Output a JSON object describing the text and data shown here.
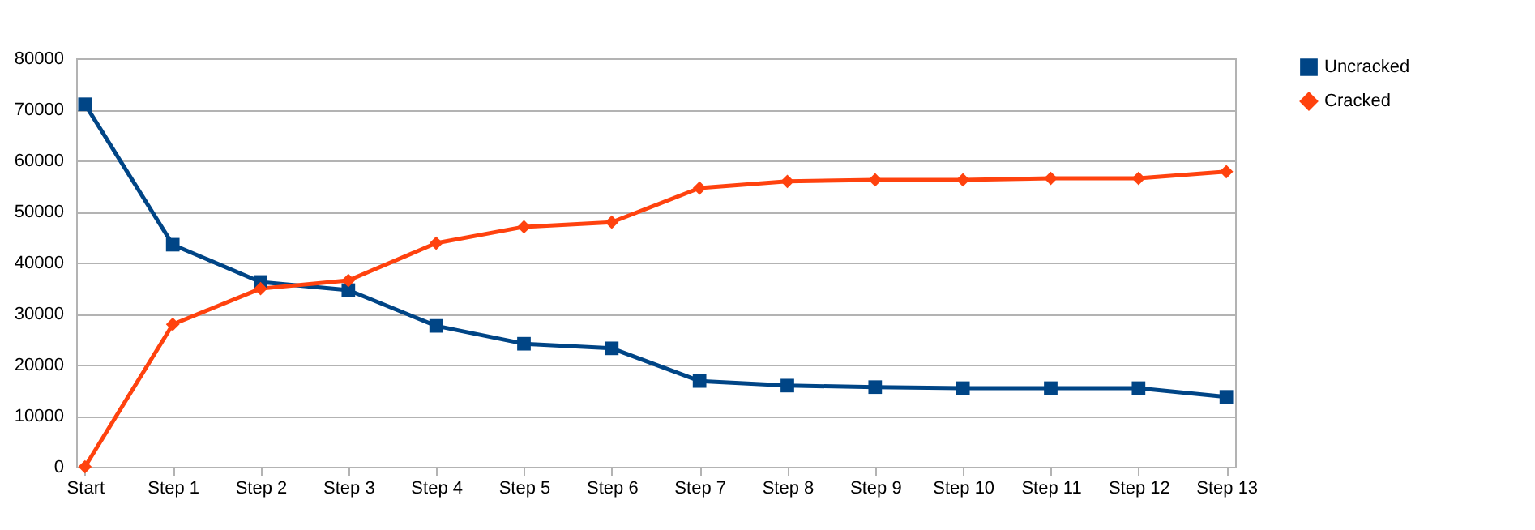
{
  "chart_data": {
    "type": "line",
    "categories": [
      "Start",
      "Step 1",
      "Step 2",
      "Step 3",
      "Step 4",
      "Step 5",
      "Step 6",
      "Step 7",
      "Step 8",
      "Step 9",
      "Step 10",
      "Step 11",
      "Step 12",
      "Step 13"
    ],
    "series": [
      {
        "name": "Uncracked",
        "color": "#004586",
        "marker": "square",
        "values": [
          71000,
          43500,
          36200,
          34600,
          27600,
          24100,
          23200,
          16800,
          15900,
          15600,
          15400,
          15400,
          15400,
          13700
        ]
      },
      {
        "name": "Cracked",
        "color": "#ff420e",
        "marker": "diamond",
        "values": [
          0,
          27900,
          34900,
          36500,
          43800,
          47000,
          47900,
          54600,
          55900,
          56200,
          56200,
          56500,
          56500,
          57800
        ]
      }
    ],
    "ylim": [
      0,
      80000
    ],
    "yticks": [
      0,
      10000,
      20000,
      30000,
      40000,
      50000,
      60000,
      70000,
      80000
    ],
    "grid": "y",
    "legend": "right"
  }
}
